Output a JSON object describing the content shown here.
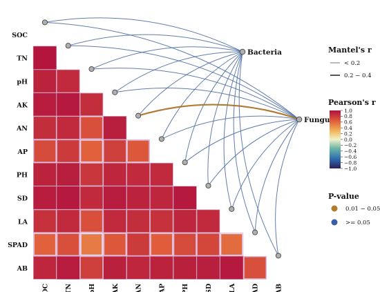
{
  "chart_data": {
    "type": "heatmap",
    "variables": [
      "SOC",
      "TN",
      "pH",
      "AK",
      "AN",
      "AP",
      "PH",
      "SD",
      "LA",
      "SPAD",
      "AB"
    ],
    "pearson_r_lower_triangle": [
      [],
      [
        0.98
      ],
      [
        0.92,
        0.88
      ],
      [
        0.95,
        0.96,
        0.86
      ],
      [
        0.86,
        0.88,
        0.7,
        0.94
      ],
      [
        0.72,
        0.8,
        0.62,
        0.78,
        0.66
      ],
      [
        0.92,
        0.94,
        0.82,
        0.9,
        0.88,
        0.88
      ],
      [
        0.95,
        0.96,
        0.88,
        0.95,
        0.92,
        0.9,
        0.96
      ],
      [
        0.84,
        0.88,
        0.7,
        0.88,
        0.86,
        0.84,
        0.9,
        0.88
      ],
      [
        0.62,
        0.7,
        0.52,
        0.66,
        0.8,
        0.64,
        0.72,
        0.74,
        0.58
      ],
      [
        0.9,
        0.95,
        0.78,
        0.93,
        0.9,
        0.92,
        0.93,
        0.94,
        0.96,
        0.7
      ]
    ],
    "mantel": {
      "sources": [
        "Bacteria",
        "Fungus"
      ],
      "links": [
        {
          "from": "Bacteria",
          "to": "SOC",
          "r": "< 0.2",
          "p": ">= 0.05"
        },
        {
          "from": "Bacteria",
          "to": "TN",
          "r": "< 0.2",
          "p": ">= 0.05"
        },
        {
          "from": "Bacteria",
          "to": "pH",
          "r": "< 0.2",
          "p": ">= 0.05"
        },
        {
          "from": "Bacteria",
          "to": "AK",
          "r": "< 0.2",
          "p": ">= 0.05"
        },
        {
          "from": "Bacteria",
          "to": "AN",
          "r": "< 0.2",
          "p": ">= 0.05"
        },
        {
          "from": "Bacteria",
          "to": "AP",
          "r": "< 0.2",
          "p": ">= 0.05"
        },
        {
          "from": "Bacteria",
          "to": "PH",
          "r": "< 0.2",
          "p": ">= 0.05"
        },
        {
          "from": "Bacteria",
          "to": "SD",
          "r": "< 0.2",
          "p": ">= 0.05"
        },
        {
          "from": "Bacteria",
          "to": "LA",
          "r": "< 0.2",
          "p": ">= 0.05"
        },
        {
          "from": "Bacteria",
          "to": "SPAD",
          "r": "< 0.2",
          "p": ">= 0.05"
        },
        {
          "from": "Bacteria",
          "to": "AB",
          "r": "< 0.2",
          "p": ">= 0.05"
        },
        {
          "from": "Fungus",
          "to": "SOC",
          "r": "< 0.2",
          "p": ">= 0.05"
        },
        {
          "from": "Fungus",
          "to": "TN",
          "r": "< 0.2",
          "p": ">= 0.05"
        },
        {
          "from": "Fungus",
          "to": "pH",
          "r": "< 0.2",
          "p": ">= 0.05"
        },
        {
          "from": "Fungus",
          "to": "AK",
          "r": "< 0.2",
          "p": ">= 0.05"
        },
        {
          "from": "Fungus",
          "to": "AN",
          "r": "0.2 – 0.4",
          "p": "0.01 – 0.05"
        },
        {
          "from": "Fungus",
          "to": "AP",
          "r": "< 0.2",
          "p": ">= 0.05"
        },
        {
          "from": "Fungus",
          "to": "PH",
          "r": "< 0.2",
          "p": ">= 0.05"
        },
        {
          "from": "Fungus",
          "to": "SD",
          "r": "< 0.2",
          "p": ">= 0.05"
        },
        {
          "from": "Fungus",
          "to": "LA",
          "r": "< 0.2",
          "p": ">= 0.05"
        },
        {
          "from": "Fungus",
          "to": "SPAD",
          "r": "< 0.2",
          "p": ">= 0.05"
        },
        {
          "from": "Fungus",
          "to": "AB",
          "r": "< 0.2",
          "p": ">= 0.05"
        }
      ]
    },
    "legend": {
      "mantel_title": "Mantel's r",
      "mantel_items": [
        "< 0.2",
        "0.2 − 0.4"
      ],
      "pearson_title": "Pearson's r",
      "pearson_ticks": [
        "1.0",
        "0.8",
        "0.6",
        "0.4",
        "0.2",
        "0.0",
        "−0.2",
        "−0.4",
        "−0.6",
        "−0.8",
        "−1.0"
      ],
      "pvalue_title": "P-value",
      "pvalue_items": [
        "0.01 − 0.05",
        ">= 0.05"
      ]
    },
    "colors": {
      "pvalue_sig": "#b07d2a",
      "pvalue_ns": "#3a5ea3",
      "link_ns": "#4f6fa3",
      "link_sig": "#a86d1e",
      "cell_border": "#e7b6d8",
      "node_fill": "#b0b0b0",
      "gradient": [
        "#2a1f5e",
        "#2f6fb0",
        "#6fb7a8",
        "#f2f0c8",
        "#f0b458",
        "#e05c3a",
        "#b0113d"
      ]
    }
  }
}
